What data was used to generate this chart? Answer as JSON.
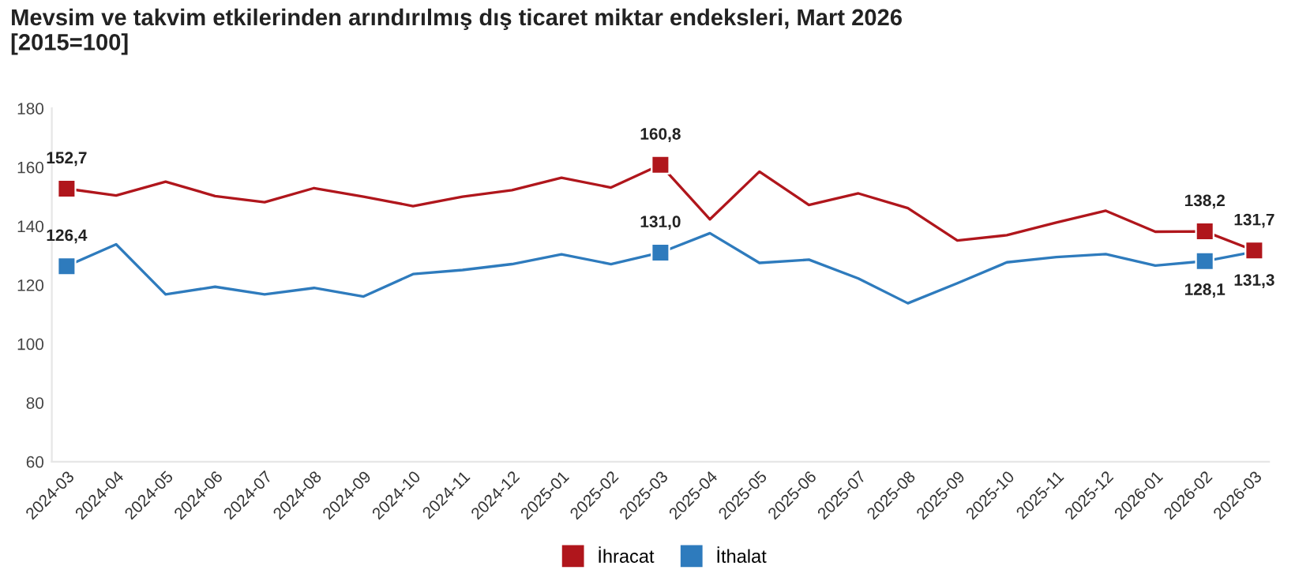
{
  "chart_data": {
    "type": "line",
    "title": "Mevsim ve takvim etkilerinden arındırılmış dış ticaret miktar endeksleri, Mart 2026\n[2015=100]",
    "categories": [
      "2024-03",
      "2024-04",
      "2024-05",
      "2024-06",
      "2024-07",
      "2024-08",
      "2024-09",
      "2024-10",
      "2024-11",
      "2024-12",
      "2025-01",
      "2025-02",
      "2025-03",
      "2025-04",
      "2025-05",
      "2025-06",
      "2025-07",
      "2025-08",
      "2025-09",
      "2025-10",
      "2025-11",
      "2025-12",
      "2026-01",
      "2026-02",
      "2026-03"
    ],
    "series": [
      {
        "name": "İhracat",
        "color": "#b0161c",
        "values": [
          152.7,
          150.4,
          155.1,
          150.2,
          148.1,
          152.9,
          150.0,
          146.8,
          150.0,
          152.2,
          156.4,
          153.1,
          160.8,
          142.3,
          158.5,
          147.2,
          151.1,
          146.1,
          135.1,
          136.9,
          141.2,
          145.2,
          138.1,
          138.2,
          131.7
        ],
        "value_labels": [
          "152,7",
          null,
          null,
          null,
          null,
          null,
          null,
          null,
          null,
          null,
          null,
          null,
          "160,8",
          null,
          null,
          null,
          null,
          null,
          null,
          null,
          null,
          null,
          null,
          "138,2",
          "131,7"
        ]
      },
      {
        "name": "İthalat",
        "color": "#2e7bbd",
        "values": [
          126.4,
          133.8,
          116.8,
          119.4,
          116.8,
          119.0,
          116.1,
          123.7,
          125.1,
          127.1,
          130.4,
          127.1,
          131.0,
          137.6,
          127.5,
          128.6,
          122.2,
          113.8,
          120.6,
          127.7,
          129.5,
          130.5,
          126.6,
          128.1,
          131.3
        ],
        "value_labels": [
          "126,4",
          null,
          null,
          null,
          null,
          null,
          null,
          null,
          null,
          null,
          null,
          null,
          "131,0",
          null,
          null,
          null,
          null,
          null,
          null,
          null,
          null,
          null,
          null,
          "128,1",
          "131,3"
        ]
      }
    ],
    "ylim": [
      60,
      180
    ],
    "yticks": [
      60,
      80,
      100,
      120,
      140,
      160,
      180
    ],
    "grid": false,
    "legend": "bottom"
  }
}
